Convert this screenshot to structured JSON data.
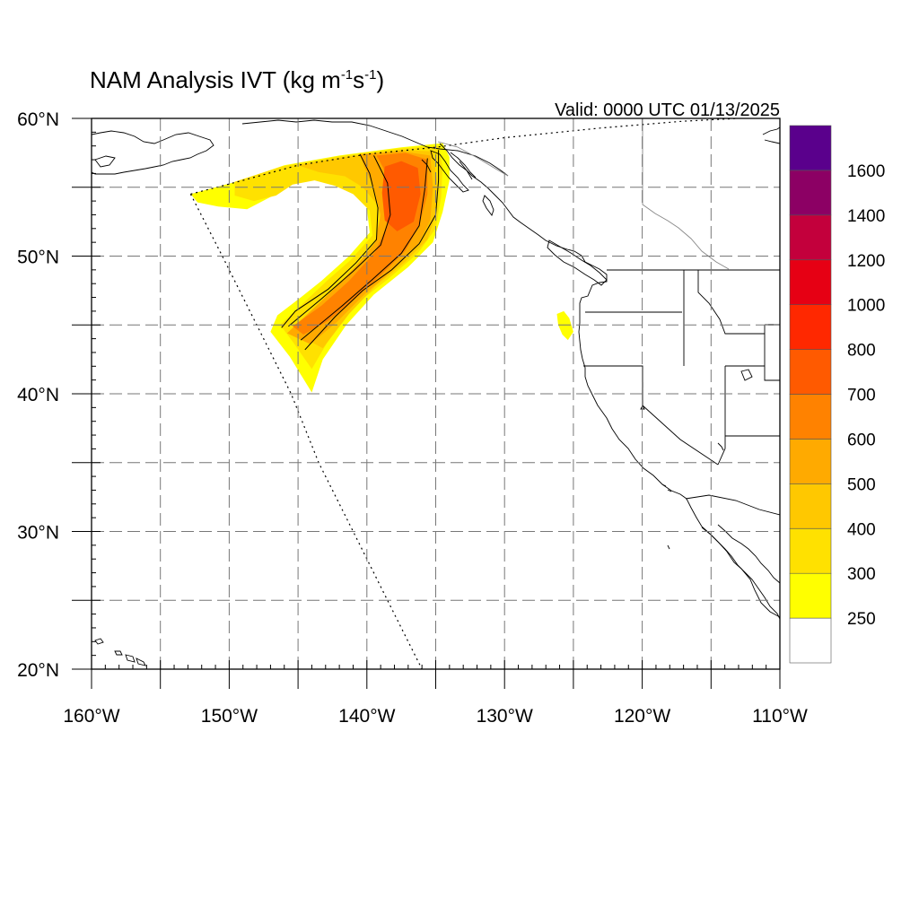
{
  "title": {
    "main": "NAM Analysis IVT (kg m",
    "exp1": "-1",
    "mid": "s",
    "exp2": "-1",
    "close": ")"
  },
  "valid_label": "Valid: 0000 UTC 01/13/2025",
  "axes": {
    "lon_ticks": [
      {
        "value": -160,
        "label": "160°W"
      },
      {
        "value": -150,
        "label": "150°W"
      },
      {
        "value": -140,
        "label": "140°W"
      },
      {
        "value": -130,
        "label": "130°W"
      },
      {
        "value": -120,
        "label": "120°W"
      },
      {
        "value": -110,
        "label": "110°W"
      }
    ],
    "lat_ticks": [
      {
        "value": 20,
        "label": "20°N"
      },
      {
        "value": 30,
        "label": "30°N"
      },
      {
        "value": 40,
        "label": "40°N"
      },
      {
        "value": 50,
        "label": "50°N"
      },
      {
        "value": 60,
        "label": "60°N"
      }
    ],
    "lon_range": [
      -160,
      -110
    ],
    "lat_range": [
      20,
      60
    ],
    "grid_lon": [
      -155,
      -150,
      -145,
      -140,
      -135,
      -130,
      -125,
      -120,
      -115
    ],
    "grid_lat": [
      25,
      30,
      35,
      40,
      45,
      50,
      55
    ],
    "grid": true,
    "grid_style": "dashed"
  },
  "colorbar": {
    "placement": "right",
    "levels": [
      "250",
      "300",
      "400",
      "500",
      "600",
      "700",
      "800",
      "1000",
      "1200",
      "1400",
      "1600"
    ],
    "colors": [
      "#ffffff",
      "#ffff00",
      "#ffe100",
      "#ffc800",
      "#ffaa00",
      "#ff8200",
      "#ff5a00",
      "#ff2800",
      "#e60014",
      "#c3003c",
      "#8c0064",
      "#5a008c"
    ]
  },
  "chart_data": {
    "type": "map",
    "variable": "IVT",
    "units": "kg m-1 s-1",
    "valid_time": "0000 UTC 01/13/2025",
    "domain": {
      "lon": [
        -160,
        -110
      ],
      "lat": [
        20,
        60
      ]
    },
    "contour_interval_lines": [
      250,
      500
    ],
    "ivt_regions": [
      {
        "min": 250,
        "color": "#ffff00",
        "outline": [
          [
            -152.8,
            54.5
          ],
          [
            -149.5,
            55.4
          ],
          [
            -146,
            56.6
          ],
          [
            -142,
            57.3
          ],
          [
            -137.5,
            57.9
          ],
          [
            -134.5,
            58.2
          ],
          [
            -134,
            57.2
          ],
          [
            -134,
            55.5
          ],
          [
            -134.5,
            53.2
          ],
          [
            -135.2,
            51
          ],
          [
            -137,
            49.2
          ],
          [
            -139.5,
            47.2
          ],
          [
            -141.5,
            45
          ],
          [
            -143.2,
            42.5
          ],
          [
            -144,
            40.1
          ],
          [
            -145.6,
            42.7
          ],
          [
            -147,
            44.5
          ],
          [
            -146.5,
            45.7
          ],
          [
            -144.8,
            47
          ],
          [
            -143.3,
            48.2
          ],
          [
            -141.3,
            50
          ],
          [
            -139.8,
            51.7
          ],
          [
            -140,
            53.5
          ],
          [
            -141.3,
            54.9
          ],
          [
            -142.5,
            55.4
          ],
          [
            -144,
            55.8
          ],
          [
            -145.7,
            55.5
          ],
          [
            -146.8,
            54.4
          ],
          [
            -148.7,
            53.4
          ],
          [
            -150.8,
            53.6
          ],
          [
            -152.3,
            53.9
          ]
        ]
      },
      {
        "min": 300,
        "color": "#ffe100",
        "outline": [
          [
            -149.6,
            55.4
          ],
          [
            -146.2,
            56.5
          ],
          [
            -142.3,
            57.2
          ],
          [
            -137.8,
            57.8
          ],
          [
            -134.8,
            58
          ],
          [
            -134.5,
            56.5
          ],
          [
            -134.6,
            54.3
          ],
          [
            -135,
            52
          ],
          [
            -136.3,
            50.2
          ],
          [
            -138.5,
            48.3
          ],
          [
            -140.8,
            46.5
          ],
          [
            -142.6,
            44.2
          ],
          [
            -144,
            41.8
          ],
          [
            -145.4,
            43.8
          ],
          [
            -146.3,
            45
          ],
          [
            -144.6,
            46.6
          ],
          [
            -142.8,
            48.3
          ],
          [
            -141.2,
            49.7
          ],
          [
            -139.6,
            51.5
          ],
          [
            -139.8,
            53.3
          ],
          [
            -141,
            54.5
          ],
          [
            -142.3,
            55.1
          ],
          [
            -143.8,
            55.5
          ],
          [
            -145.4,
            55.2
          ],
          [
            -146.6,
            54.4
          ],
          [
            -148.2,
            54
          ],
          [
            -149.6,
            54.4
          ]
        ]
      },
      {
        "min": 400,
        "color": "#ffc800",
        "outline": [
          [
            -145,
            56.6
          ],
          [
            -141.5,
            57.2
          ],
          [
            -137.5,
            57.7
          ],
          [
            -135.2,
            57.6
          ],
          [
            -134.9,
            55.5
          ],
          [
            -135,
            53
          ],
          [
            -135.6,
            51.2
          ],
          [
            -137.2,
            49.6
          ],
          [
            -139.4,
            47.8
          ],
          [
            -141.3,
            45.8
          ],
          [
            -143.2,
            43.3
          ],
          [
            -145.2,
            44.4
          ],
          [
            -143.5,
            46.2
          ],
          [
            -141.6,
            48.1
          ],
          [
            -140.1,
            49.7
          ],
          [
            -138.9,
            51.5
          ],
          [
            -139.2,
            53.7
          ],
          [
            -140.3,
            55
          ],
          [
            -141.6,
            55.8
          ],
          [
            -143.5,
            56.1
          ]
        ]
      },
      {
        "min": 500,
        "color": "#ffaa00",
        "outline": [
          [
            -140.5,
            57.4
          ],
          [
            -137.5,
            57.6
          ],
          [
            -135.4,
            57.3
          ],
          [
            -135.2,
            55
          ],
          [
            -135.4,
            52.6
          ],
          [
            -136.3,
            50.8
          ],
          [
            -138,
            49.1
          ],
          [
            -140.2,
            47.2
          ],
          [
            -142.2,
            45.2
          ],
          [
            -144.1,
            43.6
          ],
          [
            -145.8,
            44.4
          ],
          [
            -144.3,
            45.8
          ],
          [
            -142.3,
            47.7
          ],
          [
            -140.6,
            49.5
          ],
          [
            -139.4,
            51
          ],
          [
            -139,
            53
          ],
          [
            -139.5,
            55
          ],
          [
            -140.2,
            56.5
          ]
        ]
      },
      {
        "min": 600,
        "color": "#ff8200",
        "outline": [
          [
            -139.3,
            57.3
          ],
          [
            -137.2,
            57.5
          ],
          [
            -135.6,
            57
          ],
          [
            -135.6,
            54.5
          ],
          [
            -136.2,
            52.2
          ],
          [
            -137.2,
            50.4
          ],
          [
            -139,
            48.6
          ],
          [
            -141,
            46.8
          ],
          [
            -142.8,
            45.3
          ],
          [
            -144.6,
            44.3
          ],
          [
            -145.4,
            44.9
          ],
          [
            -143.3,
            46.4
          ],
          [
            -141.3,
            48.2
          ],
          [
            -139.4,
            50.3
          ],
          [
            -138.5,
            52.3
          ],
          [
            -138.4,
            54.5
          ],
          [
            -138.8,
            56.4
          ]
        ]
      },
      {
        "min": 700,
        "color": "#ff5a00",
        "outline": [
          [
            -138.7,
            56.5
          ],
          [
            -137.5,
            56.9
          ],
          [
            -136.3,
            56.4
          ],
          [
            -136.1,
            54.5
          ],
          [
            -136.6,
            52.5
          ],
          [
            -137.8,
            51.8
          ],
          [
            -138.7,
            52.6
          ],
          [
            -138.9,
            54.6
          ]
        ]
      },
      {
        "min": 250,
        "color": "#ffff00",
        "outline": [
          [
            -126.2,
            45.8
          ],
          [
            -125.7,
            46
          ],
          [
            -125.3,
            45.5
          ],
          [
            -125,
            44.5
          ],
          [
            -125.4,
            43.9
          ],
          [
            -125.8,
            44.3
          ],
          [
            -126.1,
            45
          ]
        ]
      }
    ],
    "contours": [
      {
        "level": 250,
        "points": [
          [
            -140.5,
            57.4
          ],
          [
            -139.8,
            56
          ],
          [
            -139.2,
            53.5
          ],
          [
            -139.3,
            51.2
          ],
          [
            -140.8,
            49.5
          ],
          [
            -142.8,
            47.6
          ],
          [
            -145.2,
            46
          ],
          [
            -146.2,
            44.8
          ]
        ]
      },
      {
        "level": 250,
        "points": [
          [
            -134.8,
            57.7
          ],
          [
            -134.8,
            55.5
          ],
          [
            -135,
            53
          ],
          [
            -136.2,
            50.9
          ],
          [
            -138.2,
            49
          ],
          [
            -140.3,
            47.5
          ],
          [
            -142.3,
            45.6
          ],
          [
            -144.5,
            43.2
          ]
        ]
      },
      {
        "level": 500,
        "points": [
          [
            -139.5,
            57.3
          ],
          [
            -138.5,
            55.3
          ],
          [
            -138.3,
            53
          ],
          [
            -139,
            50.8
          ],
          [
            -141,
            48.9
          ],
          [
            -143.3,
            46.9
          ],
          [
            -145.7,
            44.9
          ]
        ]
      },
      {
        "level": 500,
        "points": [
          [
            -135.6,
            57.1
          ],
          [
            -135.8,
            54.8
          ],
          [
            -136.2,
            52.2
          ],
          [
            -137.5,
            50.2
          ],
          [
            -139.6,
            48.3
          ],
          [
            -141.9,
            46.3
          ],
          [
            -144.8,
            43.9
          ]
        ]
      }
    ],
    "domain_boundary": [
      [
        -152.8,
        54.5
      ],
      [
        -149,
        55.5
      ],
      [
        -145,
        56.6
      ],
      [
        -140,
        57.4
      ],
      [
        -135,
        57.9
      ],
      [
        -130,
        58.6
      ],
      [
        -123,
        59.3
      ],
      [
        -117,
        59.8
      ],
      [
        -113,
        60
      ]
    ],
    "domain_boundary_west": [
      [
        -152.8,
        54.5
      ],
      [
        -150.5,
        50
      ],
      [
        -148,
        45
      ],
      [
        -145.5,
        40
      ],
      [
        -143.5,
        35
      ],
      [
        -141,
        30
      ],
      [
        -138.5,
        25
      ],
      [
        -136,
        20
      ]
    ]
  }
}
